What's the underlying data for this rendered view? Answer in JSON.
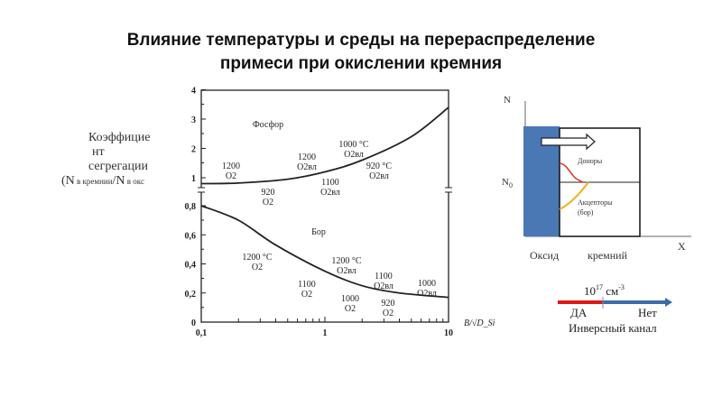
{
  "title": {
    "line1": "Влияние температуры и среды на перераспределение",
    "line2": "примеси при окислении кремния"
  },
  "y_label": {
    "line1": "Коэффицие",
    "line2": "нт",
    "line3": "сегрегации",
    "line4_open": "(N",
    "line4_sub1": " в кремнии",
    "line4_mid": "/N",
    "line4_sub2": " в окс"
  },
  "chart_data": {
    "type": "line",
    "xscale": "log",
    "xlim": [
      0.1,
      10
    ],
    "xlabel": "B/√D_Si",
    "x_ticks": [
      "0,1",
      "1",
      "10"
    ],
    "upper_panel": {
      "ylim": [
        0.8,
        4
      ],
      "y_ticks": [
        "1",
        "2",
        "3",
        "4"
      ],
      "series": {
        "name": "Фосфор",
        "x": [
          0.1,
          0.2,
          0.5,
          1,
          2,
          5,
          10
        ],
        "y": [
          0.8,
          0.82,
          0.95,
          1.2,
          1.6,
          2.4,
          3.4
        ]
      }
    },
    "lower_panel": {
      "ylim": [
        0,
        0.8
      ],
      "y_ticks": [
        "0",
        "0,2",
        "0,4",
        "0,6",
        "0,8"
      ],
      "series": {
        "name": "Бор",
        "x": [
          0.1,
          0.2,
          0.4,
          1,
          2,
          4,
          10
        ],
        "y": [
          0.8,
          0.7,
          0.53,
          0.35,
          0.25,
          0.2,
          0.17
        ]
      }
    },
    "annotations": [
      [
        "Фосфор"
      ],
      [
        "1200",
        "O2"
      ],
      [
        "920",
        "O2"
      ],
      [
        "1200",
        "O2вл"
      ],
      [
        "1100",
        "O2вл"
      ],
      [
        "1000 °C",
        "O2вл"
      ],
      [
        "920 °C",
        "O2вл"
      ],
      [
        "Бор"
      ],
      [
        "1200 °C",
        "O2"
      ],
      [
        "1100",
        "O2"
      ],
      [
        "1200 °C",
        "O2вл"
      ],
      [
        "1000",
        "O2"
      ],
      [
        "1100",
        "O2вл"
      ],
      [
        "920",
        "O2"
      ],
      [
        "1000",
        "O2вл"
      ]
    ]
  },
  "diagram": {
    "n_axis": "N",
    "n0_label": "N",
    "n0_sub": "0",
    "x_axis": "X",
    "donors": "Доноры",
    "acceptors_1": "Акцепторы",
    "acceptors_2": "(бор)",
    "oxide": "Оксид",
    "silicon": "кремний",
    "threshold_base": "10",
    "threshold_exp": "17",
    "threshold_unit": " см",
    "threshold_unit_exp": "-3",
    "yes": "ДА",
    "no": "Нет",
    "channel": "Инверсный канал",
    "colors": {
      "oxide": "#4a78b5",
      "donor": "#e03030",
      "acceptor": "#f0b020",
      "yes_bar": "#e01818",
      "no_bar": "#3d6aa8"
    }
  }
}
